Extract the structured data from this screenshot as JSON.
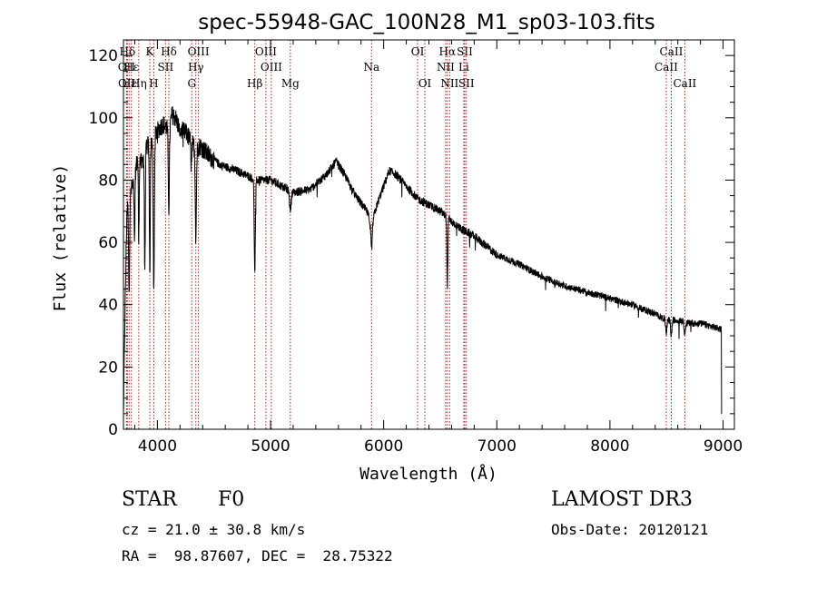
{
  "chart_data": {
    "type": "line",
    "title": "spec-55948-GAC_100N28_M1_sp03-103.fits",
    "xlabel": "Wavelength (Å)",
    "ylabel": "Flux (relative)",
    "xlim": [
      3700,
      9100
    ],
    "ylim": [
      0,
      125
    ],
    "xticks": [
      4000,
      5000,
      6000,
      7000,
      8000,
      9000
    ],
    "yticks": [
      0,
      20,
      40,
      60,
      80,
      100,
      120
    ],
    "spectrum_anchors": {
      "x": [
        3700,
        3710,
        3730,
        3760,
        3790,
        3830,
        3860,
        3890,
        3933,
        3970,
        4000,
        4050,
        4101,
        4130,
        4160,
        4200,
        4260,
        4300,
        4340,
        4380,
        4450,
        4550,
        4700,
        4820,
        4861,
        4920,
        5000,
        5100,
        5200,
        5350,
        5500,
        5580,
        5650,
        5750,
        5850,
        5893,
        5950,
        6000,
        6050,
        6100,
        6200,
        6300,
        6400,
        6500,
        6563,
        6620,
        6700,
        6800,
        6900,
        7000,
        7200,
        7400,
        7600,
        7800,
        8000,
        8200,
        8400,
        8500,
        8600,
        8700,
        8800,
        8900,
        8990
      ],
      "y": [
        5,
        30,
        70,
        75,
        80,
        88,
        85,
        90,
        92,
        94,
        96,
        98,
        96,
        101,
        100,
        96,
        95,
        92,
        90,
        91,
        88,
        85,
        83,
        81,
        80,
        80,
        80,
        78,
        76,
        77,
        82,
        86,
        82,
        75,
        70,
        66,
        73,
        78,
        83,
        82,
        78,
        74,
        72,
        70,
        68,
        66,
        64,
        62,
        59,
        56,
        53,
        49,
        46,
        44,
        42,
        40,
        37,
        35,
        35,
        34,
        34,
        33,
        32
      ]
    },
    "absorption_dips": [
      {
        "x": 3750,
        "depth": 30,
        "width": 6
      },
      {
        "x": 3798,
        "depth": 20,
        "width": 5
      },
      {
        "x": 3835,
        "depth": 28,
        "width": 5
      },
      {
        "x": 3889,
        "depth": 38,
        "width": 6
      },
      {
        "x": 3933,
        "depth": 40,
        "width": 6
      },
      {
        "x": 3968,
        "depth": 50,
        "width": 7
      },
      {
        "x": 4101,
        "depth": 25,
        "width": 7
      },
      {
        "x": 4300,
        "depth": 8,
        "width": 6
      },
      {
        "x": 4340,
        "depth": 28,
        "width": 7
      },
      {
        "x": 4861,
        "depth": 30,
        "width": 7
      },
      {
        "x": 5175,
        "depth": 6,
        "width": 10
      },
      {
        "x": 5893,
        "depth": 8,
        "width": 10
      },
      {
        "x": 6563,
        "depth": 22,
        "width": 6
      },
      {
        "x": 8498,
        "depth": 4,
        "width": 8
      },
      {
        "x": 8542,
        "depth": 5,
        "width": 8
      },
      {
        "x": 8662,
        "depth": 4,
        "width": 8
      }
    ],
    "line_markers": [
      {
        "label": "Hδ",
        "x": 3735,
        "row": 1
      },
      {
        "label": "OII",
        "x": 3727,
        "row": 2
      },
      {
        "label": "OII",
        "x": 3729,
        "row": 3
      },
      {
        "label": "Hε",
        "x": 3750,
        "row": 3
      },
      {
        "label": "Hε",
        "x": 3770,
        "row": 2
      },
      {
        "label": "Hη",
        "x": 3835,
        "row": 3
      },
      {
        "label": "K",
        "x": 3933,
        "row": 1
      },
      {
        "label": "H",
        "x": 3968,
        "row": 3
      },
      {
        "label": "SII",
        "x": 4072,
        "row": 2
      },
      {
        "label": "Hδ",
        "x": 4101,
        "row": 1
      },
      {
        "label": "OIII",
        "x": 4363,
        "row": 1
      },
      {
        "label": "Hγ",
        "x": 4340,
        "row": 2
      },
      {
        "label": "G",
        "x": 4304,
        "row": 3
      },
      {
        "label": "OIII",
        "x": 4959,
        "row": 1
      },
      {
        "label": "OIII",
        "x": 5007,
        "row": 2
      },
      {
        "label": "Hβ",
        "x": 4861,
        "row": 3
      },
      {
        "label": "Mg",
        "x": 5175,
        "row": 3
      },
      {
        "label": "Na",
        "x": 5893,
        "row": 2
      },
      {
        "label": "OI",
        "x": 6300,
        "row": 1
      },
      {
        "label": "OI",
        "x": 6364,
        "row": 3
      },
      {
        "label": "Hα",
        "x": 6563,
        "row": 1
      },
      {
        "label": "NII",
        "x": 6548,
        "row": 2
      },
      {
        "label": "NII",
        "x": 6583,
        "row": 3
      },
      {
        "label": "SII",
        "x": 6717,
        "row": 1
      },
      {
        "label": "Li",
        "x": 6708,
        "row": 2
      },
      {
        "label": "SII",
        "x": 6731,
        "row": 3
      },
      {
        "label": "CaII",
        "x": 8542,
        "row": 1
      },
      {
        "label": "CaII",
        "x": 8498,
        "row": 2
      },
      {
        "label": "CaII",
        "x": 8662,
        "row": 3
      }
    ]
  },
  "info": {
    "class": "STAR",
    "subclass": "F0",
    "survey": "LAMOST DR3",
    "cz": "cz = 21.0 ± 30.8 km/s",
    "obs_date": "Obs-Date: 20120121",
    "coords": "RA =  98.87607, DEC =  28.75322"
  },
  "colors": {
    "marker_line": "#b22222",
    "spectrum": "#000000",
    "axes": "#000000"
  }
}
